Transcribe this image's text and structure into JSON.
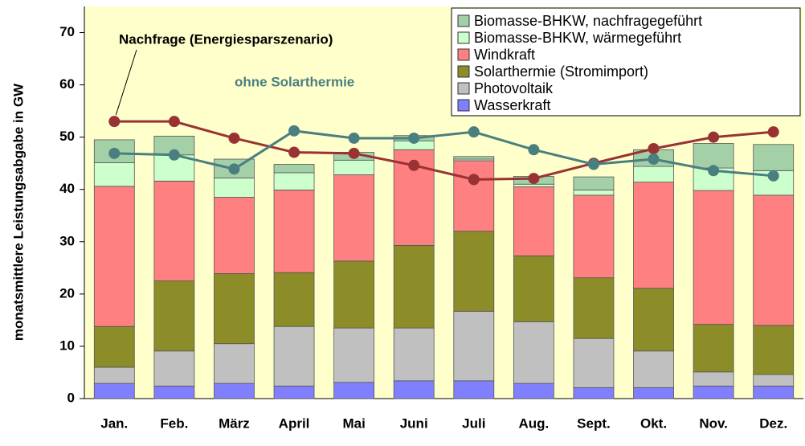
{
  "chart_data": {
    "type": "bar",
    "stacked": true,
    "y_label": "monatsmittlere Leistungsabgabe in GW",
    "categories": [
      "Jan.",
      "Feb.",
      "März",
      "April",
      "Mai",
      "Juni",
      "Juli",
      "Aug.",
      "Sept.",
      "Okt.",
      "Nov.",
      "Dez."
    ],
    "series": [
      {
        "name": "Wasserkraft",
        "color": "#8080ff",
        "values": [
          2.9,
          2.4,
          2.9,
          2.4,
          3.1,
          3.4,
          3.4,
          2.9,
          2.1,
          2.1,
          2.4,
          2.4
        ]
      },
      {
        "name": "Photovoltaik",
        "color": "#c0c0c0",
        "values": [
          3.1,
          6.7,
          7.6,
          11.4,
          10.4,
          10.1,
          13.3,
          11.8,
          9.4,
          7.0,
          2.7,
          2.2
        ]
      },
      {
        "name": "Solarthermie (Stromimport)",
        "color": "#8c8c28",
        "values": [
          7.8,
          13.4,
          13.4,
          10.3,
          12.8,
          15.8,
          15.3,
          12.6,
          11.6,
          12.0,
          9.1,
          9.4
        ]
      },
      {
        "name": "Windkraft",
        "color": "#ff8080",
        "values": [
          26.8,
          19.1,
          14.6,
          15.8,
          16.5,
          18.3,
          13.5,
          13.2,
          15.8,
          20.3,
          25.6,
          24.9
        ]
      },
      {
        "name": "Biomasse-BHKW, wärmegeführt",
        "color": "#ccffcc",
        "values": [
          4.5,
          5.0,
          3.7,
          3.3,
          2.8,
          1.7,
          0.3,
          0.5,
          1.0,
          3.0,
          4.3,
          4.7
        ]
      },
      {
        "name": "Biomasse-BHKW, nachfragegeführt",
        "color": "#a4d0a8",
        "values": [
          4.4,
          3.6,
          3.6,
          1.6,
          1.5,
          1.0,
          0.5,
          1.5,
          2.5,
          3.2,
          4.7,
          5.0
        ]
      },
      {
        "name": "Nachfrage (Energiesparszenario)",
        "type": "line",
        "color": "#993333",
        "values": [
          53.0,
          53.0,
          49.8,
          47.1,
          46.9,
          44.6,
          41.9,
          42.1,
          45.0,
          47.8,
          50.0,
          51.0
        ]
      },
      {
        "name": "ohne Solarthermie",
        "type": "line",
        "color": "#4a7f7f",
        "values": [
          46.9,
          46.6,
          43.9,
          51.2,
          49.8,
          49.8,
          51.0,
          47.6,
          44.8,
          45.8,
          43.6,
          42.6
        ]
      }
    ],
    "ylim": [
      0,
      75
    ],
    "yticks": [
      0,
      10,
      20,
      30,
      40,
      50,
      60,
      70
    ],
    "legend": "top-right",
    "background": "#ffffcc"
  }
}
